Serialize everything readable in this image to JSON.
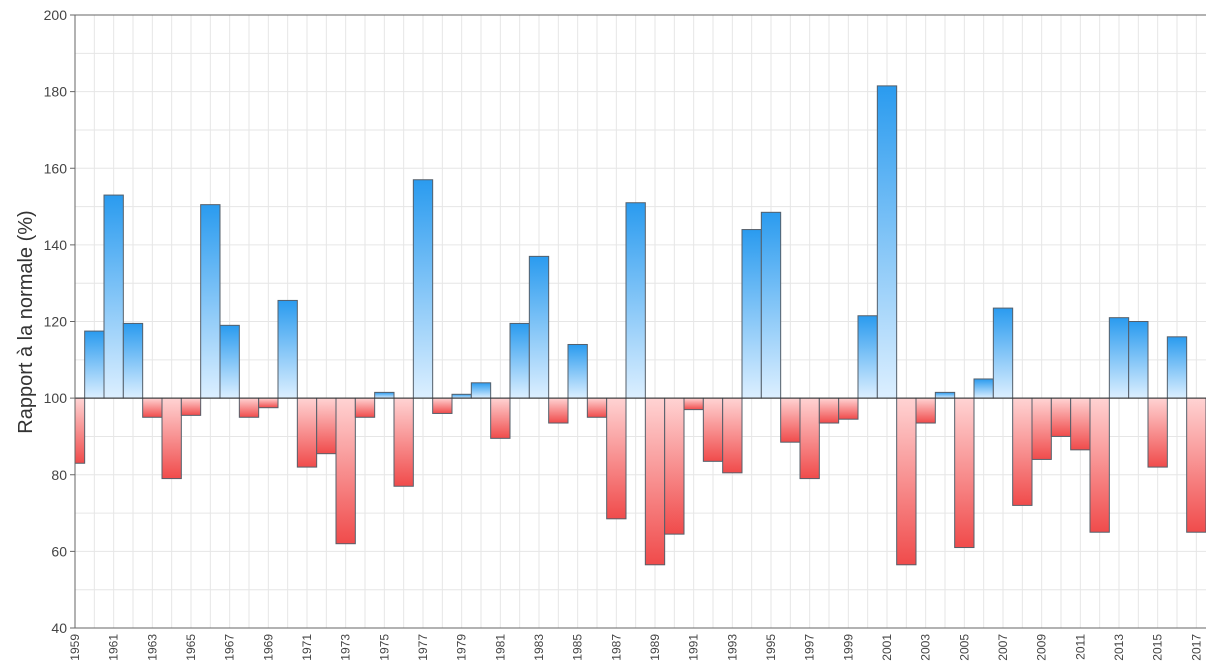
{
  "chart_data": {
    "type": "bar",
    "title": "",
    "xlabel": "",
    "ylabel": "Rapport à la normale (%)",
    "ylim": [
      40,
      200
    ],
    "yticks": [
      40,
      60,
      80,
      100,
      120,
      140,
      160,
      180,
      200
    ],
    "baseline": 100,
    "grid": true,
    "legend": "none",
    "colors": {
      "above_top": "#2a9bef",
      "above_bottom": "#dcefff",
      "below_top": "#ffd3d3",
      "below_bottom": "#f04b4b",
      "bar_stroke": "#555f6a",
      "grid": "#e6e6e6",
      "baseline": "#333333"
    },
    "categories": [
      "1959",
      "1960",
      "1961",
      "1962",
      "1963",
      "1964",
      "1965",
      "1966",
      "1967",
      "1968",
      "1969",
      "1970",
      "1971",
      "1972",
      "1973",
      "1974",
      "1975",
      "1976",
      "1977",
      "1978",
      "1979",
      "1980",
      "1981",
      "1982",
      "1983",
      "1984",
      "1985",
      "1986",
      "1987",
      "1988",
      "1989",
      "1990",
      "1991",
      "1992",
      "1993",
      "1994",
      "1995",
      "1996",
      "1997",
      "1998",
      "1999",
      "2000",
      "2001",
      "2002",
      "2003",
      "2004",
      "2005",
      "2006",
      "2007",
      "2008",
      "2009",
      "2010",
      "2011",
      "2012",
      "2013",
      "2014",
      "2015",
      "2016",
      "2017"
    ],
    "tick_labels": [
      "1959",
      "",
      "1961",
      "",
      "1963",
      "",
      "1965",
      "",
      "1967",
      "",
      "1969",
      "",
      "1971",
      "",
      "1973",
      "",
      "1975",
      "",
      "1977",
      "",
      "1979",
      "",
      "1981",
      "",
      "1983",
      "",
      "1985",
      "",
      "1987",
      "",
      "1989",
      "",
      "1991",
      "",
      "1993",
      "",
      "1995",
      "",
      "1997",
      "",
      "1999",
      "",
      "2001",
      "",
      "2003",
      "",
      "2005",
      "",
      "2007",
      "",
      "2009",
      "",
      "2011",
      "",
      "2013",
      "",
      "2015",
      "",
      "2017"
    ],
    "values": [
      83,
      117.5,
      153,
      119.5,
      95,
      79,
      95.5,
      150.5,
      119,
      95,
      97.5,
      125.5,
      82,
      85.5,
      62,
      95,
      101.5,
      77,
      157,
      96,
      101,
      104,
      89.5,
      119.5,
      137,
      93.5,
      114,
      95,
      68.5,
      151,
      56.5,
      64.5,
      97,
      83.5,
      80.5,
      144,
      148.5,
      88.5,
      79,
      93.5,
      94.5,
      121.5,
      181.5,
      56.5,
      93.5,
      101.5,
      61,
      105,
      123.5,
      72,
      84,
      90,
      86.5,
      65,
      121,
      120,
      82,
      116,
      65
    ]
  }
}
